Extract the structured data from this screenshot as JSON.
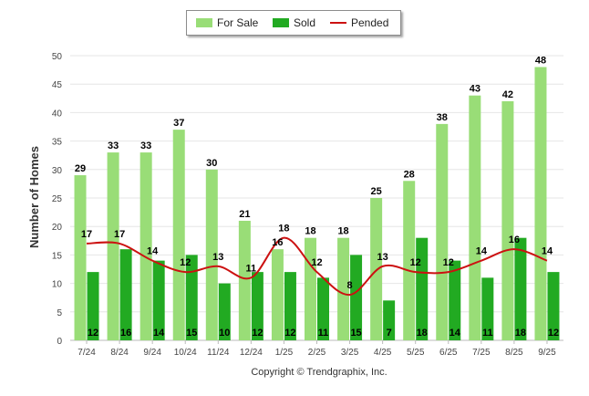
{
  "chart_data": {
    "type": "bar",
    "title": "",
    "xlabel": "",
    "ylabel": "Number of Homes",
    "ylim": [
      0,
      50
    ],
    "yticks": [
      "0",
      "5",
      "10",
      "15",
      "20",
      "25",
      "30",
      "35",
      "40",
      "45",
      "50"
    ],
    "categories": [
      "7/24",
      "8/24",
      "9/24",
      "10/24",
      "11/24",
      "12/24",
      "1/25",
      "2/25",
      "3/25",
      "4/25",
      "5/25",
      "6/25",
      "7/25",
      "8/25",
      "9/25"
    ],
    "series": [
      {
        "name": "For Sale",
        "type": "bar",
        "color": "#99dd77",
        "values": [
          29,
          33,
          33,
          37,
          30,
          21,
          16,
          18,
          18,
          25,
          28,
          38,
          43,
          42,
          48
        ]
      },
      {
        "name": "Sold",
        "type": "bar",
        "color": "#22aa22",
        "values": [
          12,
          16,
          14,
          15,
          10,
          12,
          12,
          11,
          15,
          7,
          18,
          14,
          11,
          18,
          12
        ]
      },
      {
        "name": "Pended",
        "type": "line",
        "color": "#cc1111",
        "values": [
          17,
          17,
          14,
          12,
          13,
          11,
          18,
          12,
          8,
          13,
          12,
          12,
          14,
          16,
          14
        ]
      }
    ],
    "legend_position": "top-center",
    "grid": true
  },
  "copyright": "Copyright © Trendgraphix, Inc."
}
